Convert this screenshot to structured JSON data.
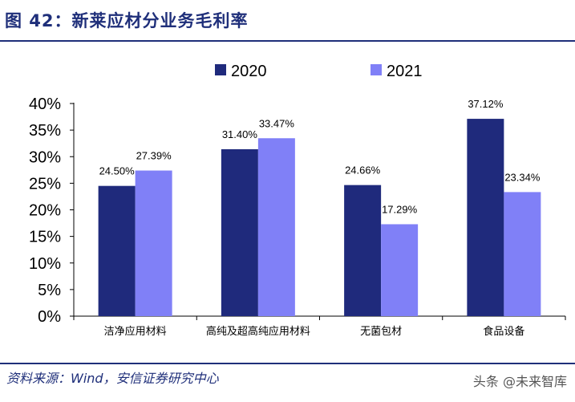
{
  "header": {
    "title": "图 42：新莱应材分业务毛利率"
  },
  "footer": {
    "source": "资料来源：Wind，安信证券研究中心",
    "watermark": "头条 @未来智库"
  },
  "colors": {
    "series_2020": "#1f2a7c",
    "series_2021": "#8080f7",
    "brand": "#1f2f7a"
  },
  "chart_data": {
    "type": "bar",
    "categories": [
      "洁净应用材料",
      "高纯及超高纯应用材料",
      "无菌包材",
      "食品设备"
    ],
    "series": [
      {
        "name": "2020",
        "values": [
          24.5,
          31.4,
          24.66,
          37.12
        ],
        "labels": [
          "24.50%",
          "31.40%",
          "24.66%",
          "37.12%"
        ]
      },
      {
        "name": "2021",
        "values": [
          27.39,
          33.47,
          17.29,
          23.34
        ],
        "labels": [
          "27.39%",
          "33.47%",
          "17.29%",
          "23.34%"
        ]
      }
    ],
    "ylim": [
      0,
      40
    ],
    "yticks": [
      "0%",
      "5%",
      "10%",
      "15%",
      "20%",
      "25%",
      "30%",
      "35%",
      "40%"
    ],
    "legend": "top-center",
    "grid": false
  }
}
